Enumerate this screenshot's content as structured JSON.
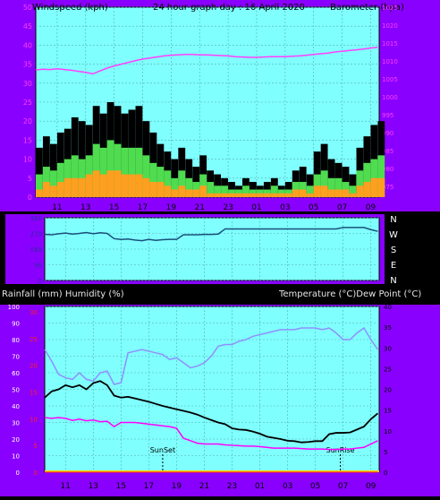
{
  "header": {
    "left": "Windspeed (kph)",
    "center": "24 hour graph day : 16 April 2020",
    "right": "Barometer (hpa)"
  },
  "humidity_header": {
    "left": "Rainfall (mm)  Humidity (%)",
    "right": "Temperature (°C)Dew Point (°C)"
  },
  "colors": {
    "frame": "#8a00ff",
    "plot_bg": "#80ffff",
    "grid": "#4fb0b0",
    "black": "#000000",
    "gust": "#000000",
    "avg_wind": "#4fdc4f",
    "min_wind": "#ff9f1f",
    "pressure": "#ff3fff",
    "direction": "#1a4f7a",
    "temperature": "#000000",
    "dewpoint": "#ff00ff",
    "humidity": "#8f8fff",
    "rain": "#ff2020",
    "sun_marker": "#000000"
  },
  "chart_data": [
    {
      "type": "line",
      "name": "wind",
      "x_ticks": [
        "11",
        "13",
        "15",
        "17",
        "19",
        "21",
        "23",
        "01",
        "03",
        "05",
        "07",
        "09"
      ],
      "ylabel": "Windspeed (kph)",
      "y2label": "Barometer (hpa)",
      "ylim": [
        0,
        50
      ],
      "y_ticks": [
        "0",
        "5",
        "10",
        "15",
        "20",
        "25",
        "30",
        "35",
        "40",
        "45",
        "50"
      ],
      "y2lim": [
        972,
        1025
      ],
      "y2_ticks": [
        "975",
        "980",
        "985",
        "990",
        "995",
        "1000",
        "1005",
        "1010",
        "1015",
        "1020",
        "1025"
      ],
      "grid": true,
      "hours": [
        9.5,
        10,
        10.5,
        11,
        11.5,
        12,
        12.5,
        13,
        13.5,
        14,
        14.5,
        15,
        15.5,
        16,
        16.5,
        17,
        17.5,
        18,
        18.5,
        19,
        19.5,
        20,
        20.5,
        21,
        21.5,
        22,
        22.5,
        23,
        23.5,
        24,
        24.5,
        25,
        25.5,
        26,
        26.5,
        27,
        27.5,
        28,
        28.5,
        29,
        29.5,
        30,
        30.5,
        31,
        31.5,
        32,
        32.5,
        33,
        33.5
      ],
      "series": [
        {
          "name": "gust",
          "values": [
            13,
            16,
            14,
            17,
            18,
            21,
            20,
            19,
            24,
            22,
            25,
            24,
            22,
            23,
            24,
            20,
            17,
            14,
            12,
            10,
            13,
            10,
            8,
            11,
            7,
            6,
            5,
            4,
            3,
            5,
            4,
            3,
            4,
            5,
            3,
            4,
            7,
            8,
            6,
            12,
            14,
            10,
            9,
            8,
            6,
            13,
            16,
            19,
            20
          ]
        },
        {
          "name": "average",
          "values": [
            6,
            8,
            7,
            9,
            10,
            11,
            10,
            11,
            14,
            13,
            15,
            14,
            13,
            13,
            13,
            11,
            9,
            8,
            7,
            5,
            7,
            5,
            4,
            6,
            4,
            3,
            3,
            2,
            2,
            3,
            2,
            2,
            2,
            3,
            2,
            2,
            4,
            4,
            3,
            6,
            7,
            5,
            5,
            4,
            3,
            7,
            9,
            10,
            11
          ]
        },
        {
          "name": "minimum",
          "values": [
            2,
            4,
            3,
            4,
            5,
            5,
            5,
            6,
            7,
            6,
            7,
            7,
            6,
            6,
            6,
            5,
            4,
            4,
            3,
            2,
            3,
            2,
            2,
            3,
            1,
            1,
            1,
            1,
            1,
            1,
            1,
            1,
            1,
            1,
            1,
            1,
            2,
            2,
            1,
            3,
            3,
            2,
            2,
            2,
            1,
            3,
            4,
            5,
            5
          ]
        },
        {
          "name": "pressure",
          "values": [
            1007.5,
            1007.7,
            1007.6,
            1007.8,
            1007.6,
            1007.4,
            1007.1,
            1006.8,
            1006.4,
            1007.2,
            1008,
            1008.6,
            1009.1,
            1009.6,
            1010.1,
            1010.5,
            1010.8,
            1011.1,
            1011.4,
            1011.6,
            1011.7,
            1011.8,
            1011.8,
            1011.7,
            1011.7,
            1011.6,
            1011.5,
            1011.4,
            1011.2,
            1011.1,
            1011,
            1011,
            1011.1,
            1011.2,
            1011.2,
            1011.2,
            1011.3,
            1011.4,
            1011.6,
            1011.8,
            1012,
            1012.2,
            1012.5,
            1012.7,
            1012.9,
            1013.1,
            1013.3,
            1013.6,
            1013.8
          ]
        }
      ]
    },
    {
      "type": "line",
      "name": "wind_direction",
      "y_ticks": [
        "360",
        "270",
        "180",
        "90",
        "0"
      ],
      "ylim": [
        0,
        360
      ],
      "right_labels": [
        "N",
        "W",
        "S",
        "E",
        "N"
      ],
      "grid": true,
      "hours": [
        9.5,
        10,
        10.5,
        11,
        11.5,
        12,
        12.5,
        13,
        13.5,
        14,
        14.5,
        15,
        15.5,
        16,
        16.5,
        17,
        17.5,
        18,
        18.5,
        19,
        19.5,
        20,
        20.5,
        21,
        21.5,
        22,
        22.5,
        23,
        23.5,
        24,
        24.5,
        25,
        25.5,
        26,
        26.5,
        27,
        27.5,
        28,
        28.5,
        29,
        29.5,
        30,
        30.5,
        31,
        31.5,
        32,
        32.5,
        33,
        33.5
      ],
      "series": [
        {
          "name": "direction",
          "values": [
            265,
            262,
            268,
            272,
            266,
            270,
            275,
            268,
            274,
            270,
            240,
            235,
            238,
            232,
            228,
            236,
            230,
            234,
            236,
            236,
            262,
            262,
            262,
            264,
            264,
            266,
            296,
            296,
            296,
            296,
            296,
            296,
            296,
            296,
            296,
            296,
            296,
            296,
            296,
            296,
            296,
            296,
            296,
            304,
            304,
            304,
            304,
            292,
            282
          ]
        }
      ]
    },
    {
      "type": "line",
      "name": "temperature_humidity",
      "x_ticks": [
        "11",
        "13",
        "15",
        "17",
        "19",
        "21",
        "23",
        "01",
        "03",
        "05",
        "07",
        "09"
      ],
      "ylabel": "Rainfall (mm)  Humidity (%)",
      "y2label": "Temperature (°C)Dew Point (°C)",
      "ylim": [
        0,
        100
      ],
      "y_ticks": [
        "0",
        "10",
        "20",
        "30",
        "40",
        "50",
        "60",
        "70",
        "80",
        "90",
        "100"
      ],
      "y_rain_ticks": [
        "0",
        "5",
        "10",
        "15",
        "20",
        "25",
        "30"
      ],
      "y2lim": [
        0,
        40
      ],
      "y2_ticks": [
        "0",
        "5",
        "10",
        "15",
        "20",
        "25",
        "30",
        "35",
        "40"
      ],
      "grid": true,
      "annotations": [
        {
          "label": "SunSet",
          "x": 18.0
        },
        {
          "label": "SunRise",
          "x": 30.8
        }
      ],
      "hours": [
        9.5,
        10,
        10.5,
        11,
        11.5,
        12,
        12.5,
        13,
        13.5,
        14,
        14.5,
        15,
        15.5,
        16,
        16.5,
        17,
        17.5,
        18,
        18.5,
        19,
        19.5,
        20,
        20.5,
        21,
        21.5,
        22,
        22.5,
        23,
        23.5,
        24,
        24.5,
        25,
        25.5,
        26,
        26.5,
        27,
        27.5,
        28,
        28.5,
        29,
        29.5,
        30,
        30.5,
        31,
        31.5,
        32,
        32.5,
        33,
        33.5
      ],
      "series": [
        {
          "name": "temperature",
          "values": [
            18,
            19.5,
            20,
            21,
            20.5,
            21,
            20,
            21.5,
            22,
            21,
            18.5,
            18,
            18.2,
            17.8,
            17.4,
            17,
            16.5,
            16,
            15.6,
            15.2,
            14.8,
            14.4,
            13.9,
            13.2,
            12.6,
            12,
            11.6,
            10.6,
            10.3,
            10.2,
            9.8,
            9.3,
            8.6,
            8.3,
            8,
            7.6,
            7.5,
            7.2,
            7.3,
            7.5,
            7.5,
            9.2,
            9.5,
            9.5,
            9.6,
            10.3,
            11,
            12.8,
            14.2
          ]
        },
        {
          "name": "dew point",
          "values": [
            13.2,
            13,
            13.2,
            13,
            12.5,
            12.8,
            12.4,
            12.6,
            12.2,
            12.3,
            11,
            12,
            12,
            12,
            11.8,
            11.6,
            11.4,
            11.2,
            11,
            10.6,
            8.2,
            7.6,
            7,
            6.8,
            6.8,
            6.8,
            6.6,
            6.5,
            6.4,
            6.3,
            6.3,
            6.2,
            6,
            5.8,
            5.8,
            5.8,
            5.8,
            5.7,
            5.6,
            5.6,
            5.6,
            5.5,
            5.5,
            5.6,
            5.6,
            5.8,
            6,
            6.8,
            7.6
          ]
        },
        {
          "name": "humidity",
          "values": [
            74,
            67,
            59,
            57,
            56,
            60,
            56,
            55,
            60,
            61,
            53,
            54,
            72,
            73,
            74,
            73,
            72,
            71,
            68,
            69,
            66,
            63,
            64,
            66,
            70,
            76,
            77,
            77,
            79,
            80,
            82,
            83,
            84,
            85,
            86,
            86,
            86,
            87,
            87,
            87,
            86,
            87,
            84,
            80,
            80,
            84,
            87,
            80,
            74
          ]
        },
        {
          "name": "rainfall",
          "values": [
            0,
            0,
            0,
            0,
            0,
            0,
            0,
            0,
            0,
            0,
            0,
            0,
            0,
            0,
            0,
            0,
            0,
            0,
            0,
            0,
            0,
            0,
            0,
            0,
            0,
            0,
            0,
            0,
            0,
            0,
            0,
            0,
            0,
            0,
            0,
            0,
            0,
            0,
            0,
            0,
            0,
            0,
            0,
            0,
            0,
            0,
            0,
            0,
            0
          ]
        }
      ]
    }
  ]
}
